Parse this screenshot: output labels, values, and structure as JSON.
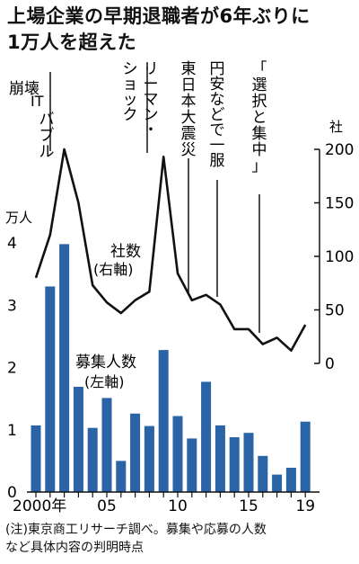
{
  "title_line1": "上場企業の早期退職者が6年ぶりに",
  "title_line2": "1万人を超えた",
  "note_line1": "(注)東京商工リサーチ調べ。募集や応募の人数",
  "note_line2": "など具体内容の判明時点",
  "chart_data": {
    "type": "bar",
    "x": [
      2000,
      2001,
      2002,
      2003,
      2004,
      2005,
      2006,
      2007,
      2008,
      2009,
      2010,
      2011,
      2012,
      2013,
      2014,
      2015,
      2016,
      2017,
      2018,
      2019
    ],
    "x_tick_labels": [
      {
        "x": 2000,
        "label": "2000年"
      },
      {
        "x": 2005,
        "label": "05"
      },
      {
        "x": 2010,
        "label": "10"
      },
      {
        "x": 2015,
        "label": "15"
      },
      {
        "x": 2019,
        "label": "19"
      }
    ],
    "left_axis": {
      "unit": "万人",
      "ylim": [
        0,
        4
      ],
      "ticks": [
        "0",
        "1",
        "2",
        "3",
        "4"
      ]
    },
    "right_axis": {
      "unit": "社",
      "ylim": [
        0,
        200
      ],
      "ticks": [
        "0",
        "50",
        "100",
        "150",
        "200"
      ]
    },
    "series": [
      {
        "name": "募集人数 (左軸)",
        "label_line1": "募集人数",
        "label_line2": "(左軸)",
        "type": "bar",
        "axis": "left",
        "color": "#2a63a6",
        "values": [
          1.07,
          3.3,
          3.98,
          1.69,
          1.03,
          1.51,
          0.5,
          1.26,
          1.06,
          2.28,
          1.22,
          0.86,
          1.77,
          1.07,
          0.88,
          0.95,
          0.58,
          0.28,
          0.39,
          1.13
        ]
      },
      {
        "name": "社数 (右軸)",
        "label_line1": "社数",
        "label_line2": "(右軸)",
        "type": "line",
        "axis": "right",
        "color": "#111111",
        "values": [
          80,
          120,
          200,
          150,
          73,
          57,
          47,
          59,
          67,
          193,
          84,
          59,
          64,
          55,
          32,
          32,
          18,
          24,
          12,
          36
        ]
      }
    ],
    "annotations": [
      {
        "x": 2001,
        "label": "崩壊",
        "prefix": "ITバブル"
      },
      {
        "x": 2008,
        "label": "リーマン・ショック"
      },
      {
        "x": 2011,
        "label": "東日本大震災"
      },
      {
        "x": 2012,
        "label": "円安などで一服"
      },
      {
        "x": 2016,
        "label": "「選択と集中」"
      }
    ]
  }
}
